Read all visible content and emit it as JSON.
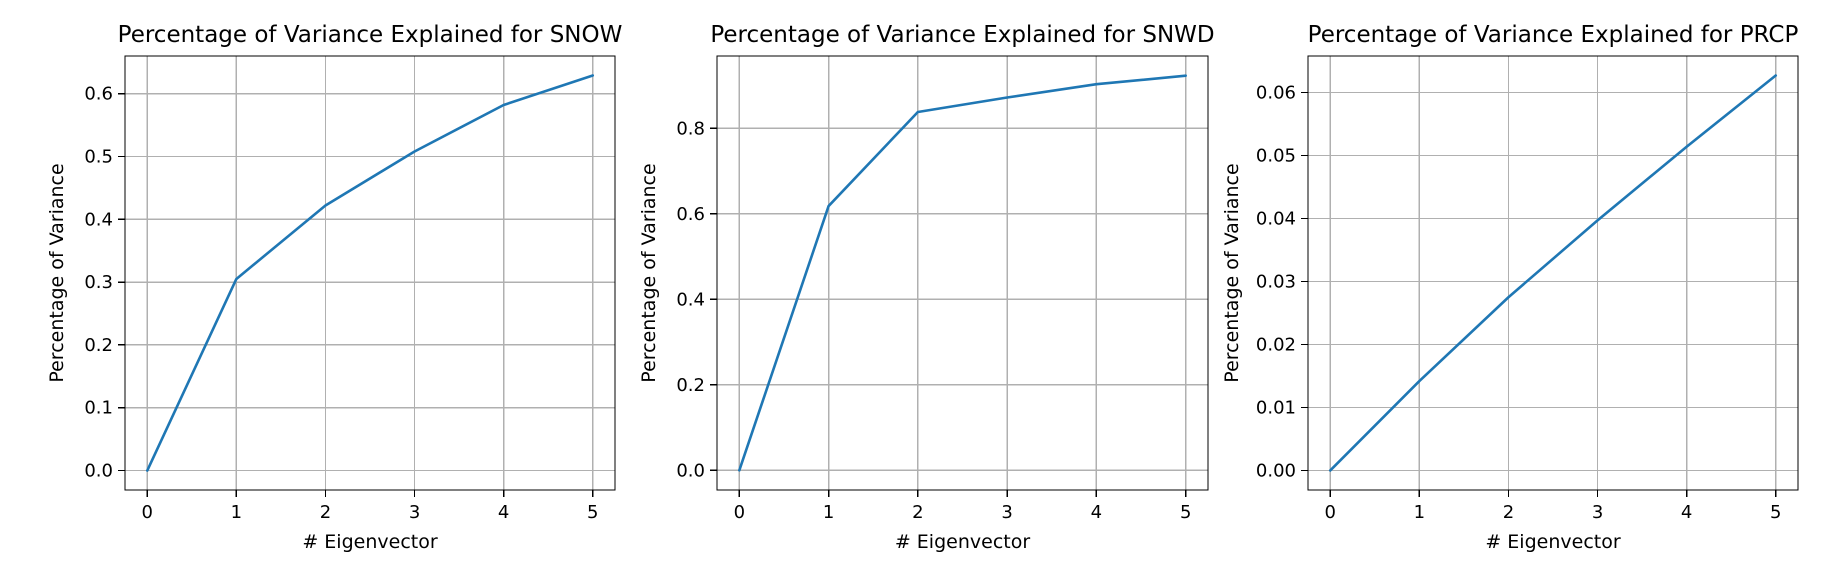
{
  "chart_data": [
    {
      "type": "line",
      "title": "Percentage of Variance Explained for SNOW",
      "xlabel": "# Eigenvector",
      "ylabel": "Percentage of Variance",
      "x": [
        0,
        1,
        2,
        3,
        4,
        5
      ],
      "series": [
        {
          "values": [
            0.0,
            0.305,
            0.422,
            0.508,
            0.582,
            0.629
          ],
          "color": "#1f77b4"
        }
      ],
      "xlim": [
        -0.25,
        5.25
      ],
      "ylim": [
        -0.031,
        0.66
      ],
      "xticks": [
        0,
        1,
        2,
        3,
        4,
        5
      ],
      "xtick_labels": [
        "0",
        "1",
        "2",
        "3",
        "4",
        "5"
      ],
      "yticks": [
        0.0,
        0.1,
        0.2,
        0.3,
        0.4,
        0.5,
        0.6
      ],
      "ytick_labels": [
        "0.0",
        "0.1",
        "0.2",
        "0.3",
        "0.4",
        "0.5",
        "0.6"
      ],
      "grid": true,
      "legend": false
    },
    {
      "type": "line",
      "title": "Percentage of Variance Explained for SNWD",
      "xlabel": "# Eigenvector",
      "ylabel": "Percentage of Variance",
      "x": [
        0,
        1,
        2,
        3,
        4,
        5
      ],
      "series": [
        {
          "values": [
            0.0,
            0.618,
            0.838,
            0.872,
            0.903,
            0.923
          ],
          "color": "#1f77b4"
        }
      ],
      "xlim": [
        -0.25,
        5.25
      ],
      "ylim": [
        -0.046,
        0.969
      ],
      "xticks": [
        0,
        1,
        2,
        3,
        4,
        5
      ],
      "xtick_labels": [
        "0",
        "1",
        "2",
        "3",
        "4",
        "5"
      ],
      "yticks": [
        0.0,
        0.2,
        0.4,
        0.6,
        0.8
      ],
      "ytick_labels": [
        "0.0",
        "0.2",
        "0.4",
        "0.6",
        "0.8"
      ],
      "grid": true,
      "legend": false
    },
    {
      "type": "line",
      "title": "Percentage of Variance Explained for PRCP",
      "xlabel": "# Eigenvector",
      "ylabel": "Percentage of Variance",
      "x": [
        0,
        1,
        2,
        3,
        4,
        5
      ],
      "series": [
        {
          "values": [
            0.0,
            0.0142,
            0.0275,
            0.0397,
            0.0514,
            0.0627
          ],
          "color": "#1f77b4"
        }
      ],
      "xlim": [
        -0.25,
        5.25
      ],
      "ylim": [
        -0.0031,
        0.0658
      ],
      "xticks": [
        0,
        1,
        2,
        3,
        4,
        5
      ],
      "xtick_labels": [
        "0",
        "1",
        "2",
        "3",
        "4",
        "5"
      ],
      "yticks": [
        0.0,
        0.01,
        0.02,
        0.03,
        0.04,
        0.05,
        0.06
      ],
      "ytick_labels": [
        "0.00",
        "0.01",
        "0.02",
        "0.03",
        "0.04",
        "0.05",
        "0.06"
      ],
      "grid": true,
      "legend": false
    }
  ]
}
